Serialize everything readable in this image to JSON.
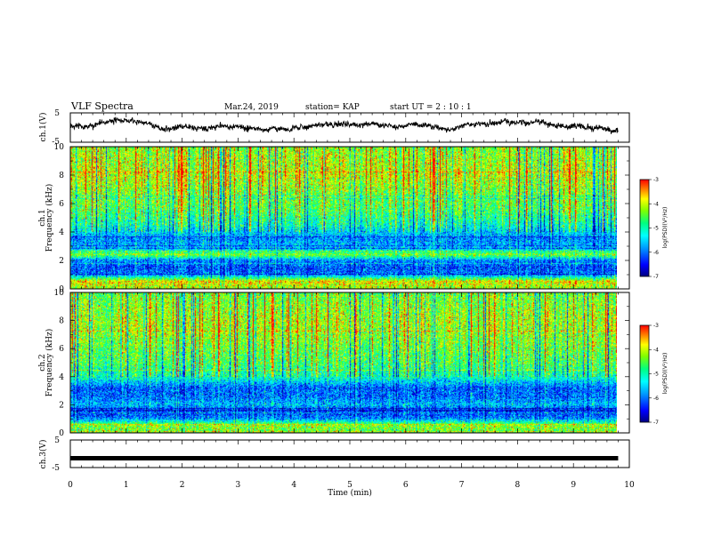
{
  "header": {
    "title": "VLF Spectra",
    "date": "Mar.24, 2019",
    "station": "station= KAP",
    "start": "start  UT =   2 : 10 : 1"
  },
  "chart_data": [
    {
      "type": "line",
      "name": "ch1-waveform",
      "ylabel": "ch.1(V)",
      "ylim": [
        -5,
        5
      ],
      "yticks": [
        "5",
        "-5"
      ],
      "xlim": [
        0,
        10
      ],
      "note_values": "noisy voltage trace between about -2 and +3 V over 0-9.8 min"
    },
    {
      "type": "heatmap",
      "name": "ch1-spectrogram",
      "ylabel_top": "ch.1",
      "ylabel": "Frequency (kHz)",
      "ylim": [
        0,
        10
      ],
      "yticks": [
        "0",
        "2",
        "4",
        "6",
        "8",
        "10"
      ],
      "xlim": [
        0,
        10
      ],
      "data_end_min": 9.8,
      "colorbar": {
        "label": "log(PSD)(V²/Hz)",
        "range": [
          -7,
          -3
        ],
        "ticks": [
          "-3",
          "-4",
          "-5",
          "-6",
          "-7"
        ]
      },
      "profile_kHz": [
        [
          0,
          -4.2
        ],
        [
          0.5,
          -3.8
        ],
        [
          1.0,
          -6.0
        ],
        [
          1.5,
          -6.2
        ],
        [
          2.0,
          -5.9
        ],
        [
          2.4,
          -4.3
        ],
        [
          2.8,
          -5.6
        ],
        [
          3.5,
          -5.9
        ],
        [
          4.5,
          -5.1
        ],
        [
          5.5,
          -4.6
        ],
        [
          6.5,
          -4.4
        ],
        [
          8.0,
          -4.0
        ],
        [
          10.0,
          -4.3
        ]
      ]
    },
    {
      "type": "heatmap",
      "name": "ch2-spectrogram",
      "ylabel_top": "ch.2",
      "ylabel": "Frequency (kHz)",
      "ylim": [
        0,
        10
      ],
      "yticks": [
        "0",
        "2",
        "4",
        "6",
        "8",
        "10"
      ],
      "xlim": [
        0,
        10
      ],
      "data_end_min": 9.8,
      "colorbar": {
        "label": "log(PSD)(V²/Hz)",
        "range": [
          -7,
          -3
        ],
        "ticks": [
          "-3",
          "-4",
          "-5",
          "-6",
          "-7"
        ]
      },
      "profile_kHz": [
        [
          0,
          -4.5
        ],
        [
          0.5,
          -4.2
        ],
        [
          1.0,
          -5.9
        ],
        [
          1.5,
          -6.3
        ],
        [
          2.0,
          -5.6
        ],
        [
          2.5,
          -6.0
        ],
        [
          3.2,
          -6.1
        ],
        [
          4.0,
          -5.0
        ],
        [
          5.0,
          -4.6
        ],
        [
          6.5,
          -4.3
        ],
        [
          8.0,
          -4.1
        ],
        [
          10.0,
          -4.4
        ]
      ]
    },
    {
      "type": "line",
      "name": "ch3-waveform",
      "ylabel": "ch.3(V)",
      "ylim": [
        -5,
        5
      ],
      "yticks": [
        "5",
        "-5"
      ],
      "xlim": [
        0,
        10
      ],
      "values_constant": -1.6
    }
  ],
  "xaxis": {
    "label": "Time (min)",
    "ticks": [
      "0",
      "1",
      "2",
      "3",
      "4",
      "5",
      "6",
      "7",
      "8",
      "9",
      "10"
    ]
  },
  "colors": {
    "ch1_line": "#000000",
    "ch3_line": "#000000",
    "colormap": [
      "#000080",
      "#0000ff",
      "#00a0ff",
      "#00ffff",
      "#00ff80",
      "#80ff00",
      "#ffff00",
      "#ff8000",
      "#ff0000"
    ]
  }
}
